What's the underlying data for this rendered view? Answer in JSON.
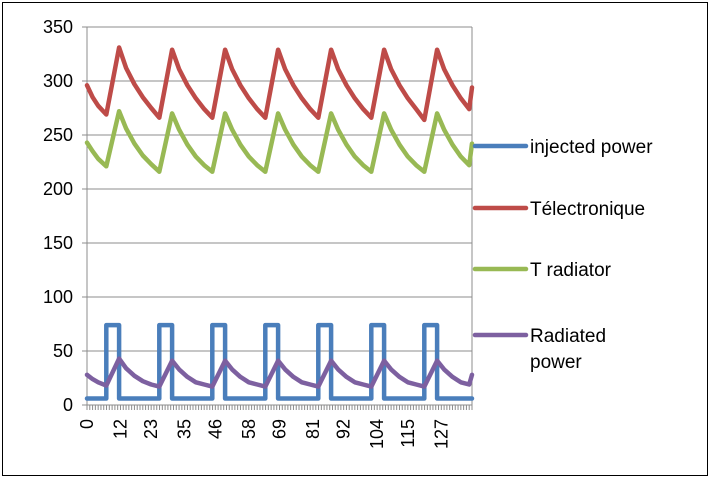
{
  "chart_data": {
    "type": "line",
    "title": "",
    "xlabel": "",
    "ylabel": "",
    "ylim": [
      0,
      350
    ],
    "yticks": [
      0,
      50,
      100,
      150,
      200,
      250,
      300,
      350
    ],
    "x_tick_labels": [
      "0",
      "12",
      "23",
      "35",
      "46",
      "58",
      "69",
      "81",
      "92",
      "104",
      "115",
      "127"
    ],
    "x_range": [
      0,
      138
    ],
    "grid": "horizontal",
    "legend_position": "right",
    "series": [
      {
        "name": "injected power",
        "color": "#4a7ebb",
        "x": [
          0,
          6.9,
          6.9,
          11.5,
          11.5,
          25.9,
          25.9,
          30.5,
          30.5,
          44.9,
          44.9,
          49.5,
          49.5,
          63.9,
          63.9,
          68.5,
          68.5,
          82.9,
          82.9,
          87.5,
          87.5,
          101.9,
          101.9,
          106.5,
          106.5,
          120.9,
          120.9,
          125.5,
          125.5,
          138
        ],
        "y": [
          6,
          6,
          74,
          74,
          6,
          6,
          74,
          74,
          6,
          6,
          74,
          74,
          6,
          6,
          74,
          74,
          6,
          6,
          74,
          74,
          6,
          6,
          74,
          74,
          6,
          6,
          74,
          74,
          6,
          6
        ]
      },
      {
        "name": "Télectronique",
        "color": "#be4b48",
        "x": [
          0,
          2,
          4,
          6.9,
          11.5,
          14,
          17,
          20,
          23,
          25.9,
          30.5,
          33,
          36,
          39,
          42,
          44.9,
          49.5,
          52,
          55,
          58,
          61,
          63.9,
          68.5,
          71,
          74,
          77,
          80,
          82.9,
          87.5,
          90,
          93,
          96,
          99,
          101.9,
          106.5,
          109,
          112,
          115,
          118,
          120.9,
          125.5,
          128,
          131,
          134,
          137,
          138
        ],
        "y": [
          296,
          285,
          277,
          269,
          331,
          312,
          297,
          285,
          275,
          266,
          329,
          311,
          296,
          284,
          274,
          266,
          329,
          311,
          296,
          284,
          274,
          266,
          329,
          311,
          296,
          284,
          274,
          266,
          329,
          311,
          296,
          284,
          274,
          266,
          329,
          311,
          296,
          284,
          274,
          264,
          329,
          311,
          296,
          284,
          274,
          294
        ]
      },
      {
        "name": "T radiator",
        "color": "#98b954",
        "x": [
          0,
          2,
          4,
          6.9,
          11.5,
          14,
          17,
          20,
          23,
          25.9,
          30.5,
          33,
          36,
          39,
          42,
          44.9,
          49.5,
          52,
          55,
          58,
          61,
          63.9,
          68.5,
          71,
          74,
          77,
          80,
          82.9,
          87.5,
          90,
          93,
          96,
          99,
          101.9,
          106.5,
          109,
          112,
          115,
          118,
          120.9,
          125.5,
          128,
          131,
          134,
          137,
          138
        ],
        "y": [
          243,
          235,
          228,
          221,
          272,
          256,
          242,
          231,
          223,
          216,
          270,
          255,
          241,
          230,
          222,
          216,
          270,
          255,
          241,
          230,
          222,
          216,
          270,
          255,
          241,
          230,
          222,
          216,
          270,
          255,
          241,
          230,
          222,
          216,
          270,
          255,
          241,
          230,
          222,
          216,
          270,
          255,
          241,
          230,
          222,
          242
        ]
      },
      {
        "name": "Radiated power",
        "color": "#7d60a0",
        "x": [
          0,
          2,
          4,
          6.9,
          11.5,
          14,
          17,
          20,
          23,
          25.9,
          30.5,
          33,
          36,
          39,
          42,
          44.9,
          49.5,
          52,
          55,
          58,
          61,
          63.9,
          68.5,
          71,
          74,
          77,
          80,
          82.9,
          87.5,
          90,
          93,
          96,
          99,
          101.9,
          106.5,
          109,
          112,
          115,
          118,
          120.9,
          125.5,
          128,
          131,
          134,
          137,
          138
        ],
        "y": [
          28,
          24,
          21,
          18,
          43,
          34,
          27,
          22,
          19,
          17,
          41,
          33,
          26,
          21,
          19,
          17,
          41,
          33,
          26,
          21,
          19,
          17,
          41,
          33,
          26,
          21,
          19,
          17,
          41,
          33,
          26,
          21,
          19,
          17,
          41,
          33,
          26,
          21,
          19,
          17,
          41,
          33,
          26,
          21,
          19,
          28
        ]
      }
    ]
  }
}
